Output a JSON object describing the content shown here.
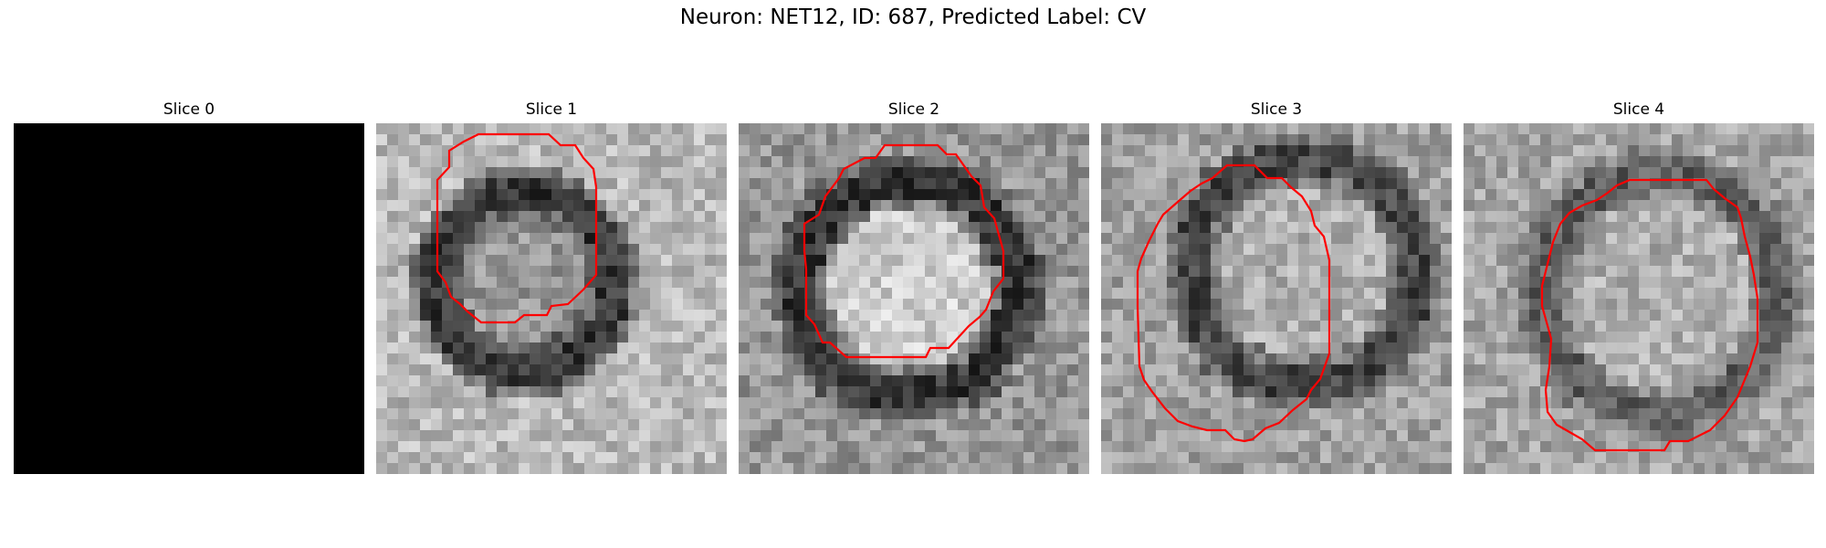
{
  "figure": {
    "title": "Neuron: NET12, ID: 687, Predicted Label: CV"
  },
  "panels": [
    {
      "title": "Slice 0",
      "contour": false
    },
    {
      "title": "Slice 1",
      "contour": true
    },
    {
      "title": "Slice 2",
      "contour": true
    },
    {
      "title": "Slice 3",
      "contour": true
    },
    {
      "title": "Slice 4",
      "contour": true
    }
  ],
  "colors": {
    "contour": "#ff0000",
    "background": "#ffffff",
    "blank_slice": "#000000"
  }
}
